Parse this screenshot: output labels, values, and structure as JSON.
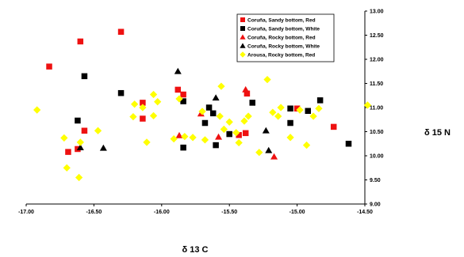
{
  "chart_data": {
    "type": "scatter",
    "xlabel": "δ 13 C",
    "ylabel": "δ 15 N",
    "xlim": [
      -17.0,
      -14.5
    ],
    "ylim": [
      9.0,
      13.0
    ],
    "x_ticks": [
      "-17.00",
      "-16.50",
      "-16.00",
      "-15.50",
      "-15.00",
      "-14.50"
    ],
    "y_ticks": [
      "9.00",
      "9.50",
      "10.00",
      "10.50",
      "11.00",
      "11.50",
      "12.00",
      "12.50",
      "13.00"
    ],
    "grid": false,
    "legend_position": "top-right",
    "series": [
      {
        "name": "Coruña, Sandy bottom, Red",
        "marker": "square",
        "color": "#ee1111",
        "points": [
          [
            -16.83,
            11.85
          ],
          [
            -16.6,
            12.37
          ],
          [
            -16.3,
            12.57
          ],
          [
            -16.69,
            10.08
          ],
          [
            -16.62,
            10.14
          ],
          [
            -16.57,
            10.52
          ],
          [
            -16.14,
            11.1
          ],
          [
            -16.14,
            10.77
          ],
          [
            -15.88,
            11.37
          ],
          [
            -15.84,
            11.27
          ],
          [
            -15.37,
            11.29
          ],
          [
            -15.38,
            10.47
          ],
          [
            -15.0,
            10.98
          ],
          [
            -14.73,
            10.6
          ],
          [
            -15.43,
            10.43
          ]
        ]
      },
      {
        "name": "Coruña, Sandy bottom, White",
        "marker": "square",
        "color": "#000000",
        "points": [
          [
            -16.57,
            11.65
          ],
          [
            -16.3,
            11.3
          ],
          [
            -16.62,
            10.73
          ],
          [
            -15.84,
            11.13
          ],
          [
            -15.84,
            10.17
          ],
          [
            -15.65,
            11.0
          ],
          [
            -15.62,
            10.88
          ],
          [
            -15.6,
            10.22
          ],
          [
            -15.68,
            10.68
          ],
          [
            -15.33,
            11.1
          ],
          [
            -15.05,
            10.98
          ],
          [
            -15.05,
            10.68
          ],
          [
            -14.92,
            10.93
          ],
          [
            -14.83,
            11.15
          ],
          [
            -14.62,
            10.25
          ],
          [
            -15.5,
            10.45
          ]
        ]
      },
      {
        "name": "Coruña, Rocky bottom, Red",
        "marker": "triangle",
        "color": "#ee1111",
        "points": [
          [
            -15.87,
            10.42
          ],
          [
            -15.71,
            10.87
          ],
          [
            -15.58,
            10.39
          ],
          [
            -15.38,
            11.37
          ],
          [
            -15.17,
            9.98
          ]
        ]
      },
      {
        "name": "Coruña, Rocky bottom, White",
        "marker": "triangle",
        "color": "#000000",
        "points": [
          [
            -15.88,
            11.75
          ],
          [
            -16.6,
            10.17
          ],
          [
            -16.43,
            10.16
          ],
          [
            -15.6,
            11.2
          ],
          [
            -15.23,
            10.52
          ],
          [
            -15.21,
            10.11
          ]
        ]
      },
      {
        "name": "Arousa, Rocky bottom, Red",
        "marker": "diamond",
        "color": "#ffff00",
        "points": [
          [
            -16.92,
            10.95
          ],
          [
            -16.72,
            10.37
          ],
          [
            -16.7,
            9.75
          ],
          [
            -16.61,
            9.55
          ],
          [
            -16.6,
            10.28
          ],
          [
            -16.47,
            10.52
          ],
          [
            -16.21,
            10.81
          ],
          [
            -16.2,
            11.07
          ],
          [
            -16.14,
            11.0
          ],
          [
            -16.11,
            10.28
          ],
          [
            -16.06,
            10.83
          ],
          [
            -16.06,
            11.27
          ],
          [
            -16.03,
            11.12
          ],
          [
            -15.91,
            10.35
          ],
          [
            -15.87,
            11.18
          ],
          [
            -15.83,
            10.4
          ],
          [
            -15.77,
            10.38
          ],
          [
            -15.7,
            10.92
          ],
          [
            -15.68,
            10.33
          ],
          [
            -15.57,
            10.82
          ],
          [
            -15.56,
            11.44
          ],
          [
            -15.54,
            10.55
          ],
          [
            -15.5,
            10.7
          ],
          [
            -15.45,
            10.48
          ],
          [
            -15.43,
            10.27
          ],
          [
            -15.39,
            10.72
          ],
          [
            -15.36,
            10.82
          ],
          [
            -15.28,
            10.07
          ],
          [
            -15.22,
            11.58
          ],
          [
            -15.18,
            10.9
          ],
          [
            -15.14,
            10.82
          ],
          [
            -15.12,
            11.0
          ],
          [
            -15.05,
            10.38
          ],
          [
            -14.98,
            10.95
          ],
          [
            -14.93,
            10.22
          ],
          [
            -14.88,
            10.82
          ],
          [
            -14.84,
            10.98
          ],
          [
            -14.48,
            11.05
          ]
        ]
      }
    ]
  }
}
